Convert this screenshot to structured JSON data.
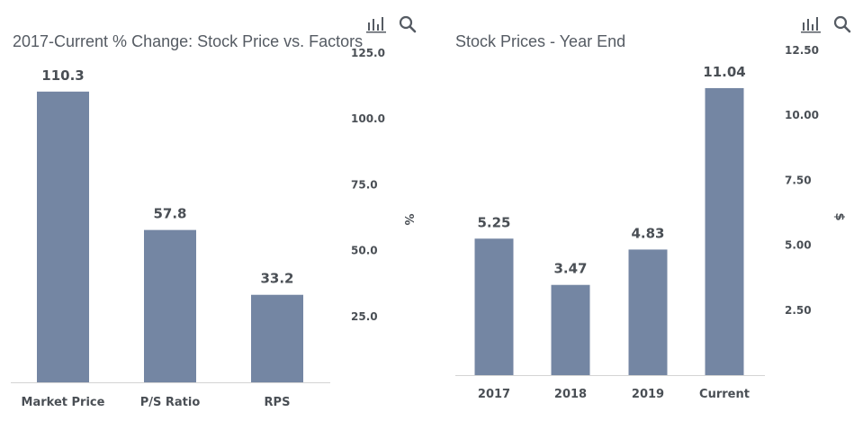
{
  "colors": {
    "bar": "#7486a3",
    "text": "#4a4f55",
    "title": "#555b63",
    "axis": "#d4d4d4"
  },
  "icons": [
    "bar-chart-icon",
    "search-icon"
  ],
  "chart_data": [
    {
      "type": "bar",
      "title": "2017-Current % Change: Stock Price vs. Factors",
      "categories": [
        "Market Price",
        "P/S Ratio",
        "RPS"
      ],
      "values": [
        110.3,
        57.8,
        33.2
      ],
      "value_labels": [
        "110.3",
        "57.8",
        "33.2"
      ],
      "ylabel": "%",
      "ylim": [
        0,
        125
      ],
      "yticks": [
        25,
        50,
        75,
        100,
        125
      ],
      "ytick_labels": [
        "25.0",
        "50.0",
        "75.0",
        "100.0",
        "125.0"
      ],
      "grid": false,
      "y_axis_position": "right"
    },
    {
      "type": "bar",
      "title": "Stock Prices - Year End",
      "categories": [
        "2017",
        "2018",
        "2019",
        "Current"
      ],
      "values": [
        5.25,
        3.47,
        4.83,
        11.04
      ],
      "value_labels": [
        "5.25",
        "3.47",
        "4.83",
        "11.04"
      ],
      "ylabel": "$",
      "ylim": [
        0,
        12.5
      ],
      "yticks": [
        2.5,
        5,
        7.5,
        10,
        12.5
      ],
      "ytick_labels": [
        "2.50",
        "5.00",
        "7.50",
        "10.00",
        "12.50"
      ],
      "grid": false,
      "y_axis_position": "right"
    }
  ]
}
